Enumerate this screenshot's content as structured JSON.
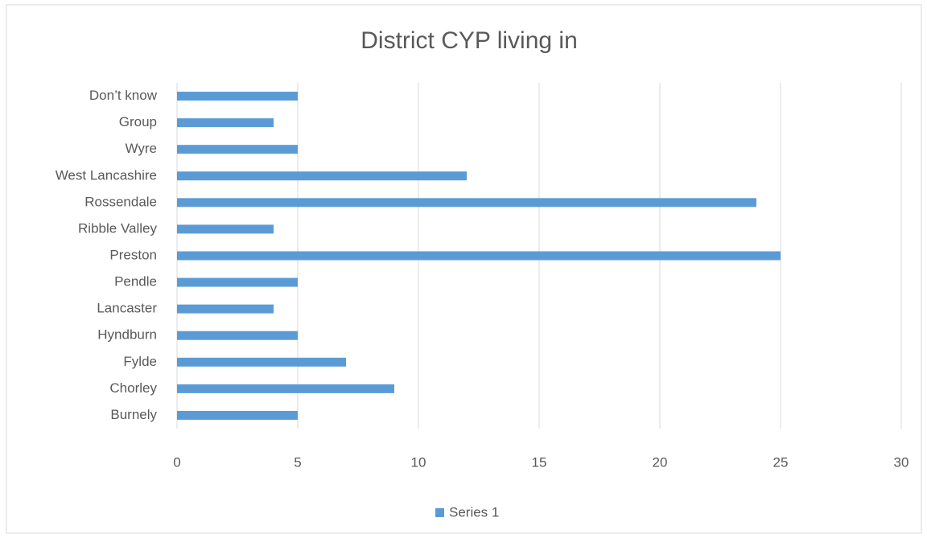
{
  "chart_data": {
    "type": "bar",
    "orientation": "horizontal",
    "title": "District CYP living in",
    "categories": [
      "Burnely",
      "Chorley",
      "Fylde",
      "Hyndburn",
      "Lancaster",
      "Pendle",
      "Preston",
      "Ribble Valley",
      "Rossendale",
      "West Lancashire",
      "Wyre",
      "Group",
      "Don’t know"
    ],
    "series": [
      {
        "name": "Series 1",
        "color": "#5b9bd5",
        "values": [
          5,
          9,
          7,
          5,
          4,
          5,
          25,
          4,
          24,
          12,
          5,
          4,
          5
        ]
      }
    ],
    "xlim": [
      0,
      30
    ],
    "xticks": [
      0,
      5,
      10,
      15,
      20,
      25,
      30
    ],
    "grid": true,
    "legend": "bottom"
  }
}
